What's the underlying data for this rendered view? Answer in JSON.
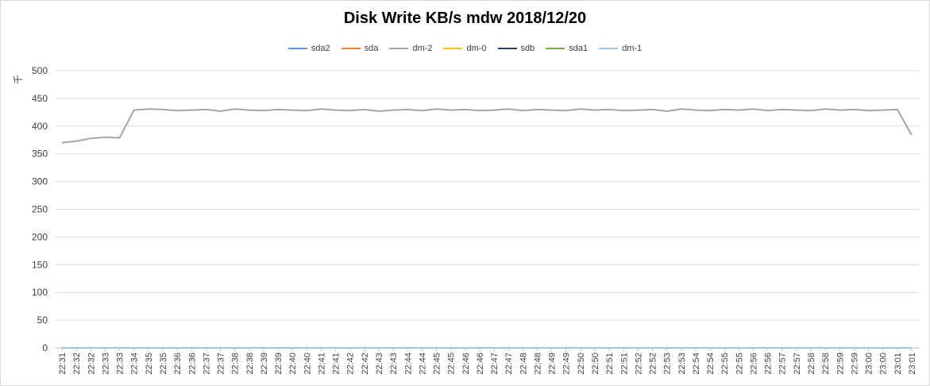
{
  "chart_data": {
    "type": "line",
    "title": "Disk Write KB/s mdw  2018/12/20",
    "xlabel": "",
    "ylabel": "千",
    "ylim": [
      0,
      500
    ],
    "yticks": [
      0,
      50,
      100,
      150,
      200,
      250,
      300,
      350,
      400,
      450,
      500
    ],
    "grid": true,
    "legend_position": "top",
    "x": [
      "22:31",
      "22:32",
      "22:32",
      "22:33",
      "22:33",
      "22:34",
      "22:35",
      "22:35",
      "22:36",
      "22:36",
      "22:37",
      "22:37",
      "22:38",
      "22:38",
      "22:39",
      "22:39",
      "22:40",
      "22:40",
      "22:41",
      "22:41",
      "22:42",
      "22:42",
      "22:43",
      "22:43",
      "22:44",
      "22:44",
      "22:45",
      "22:45",
      "22:46",
      "22:46",
      "22:47",
      "22:47",
      "22:48",
      "22:48",
      "22:49",
      "22:49",
      "22:50",
      "22:50",
      "22:51",
      "22:51",
      "22:52",
      "22:52",
      "22:53",
      "22:53",
      "22:54",
      "22:54",
      "22:55",
      "22:55",
      "22:56",
      "22:56",
      "22:57",
      "22:57",
      "22:58",
      "22:58",
      "22:59",
      "22:59",
      "23:00",
      "23:00",
      "23:01",
      "23:01"
    ],
    "series": [
      {
        "name": "sda2",
        "color": "#5b9bd5",
        "values": [
          0,
          0,
          0,
          0,
          0,
          0,
          0,
          0,
          0,
          0,
          0,
          0,
          0,
          0,
          0,
          0,
          0,
          0,
          0,
          0,
          0,
          0,
          0,
          0,
          0,
          0,
          0,
          0,
          0,
          0,
          0,
          0,
          0,
          0,
          0,
          0,
          0,
          0,
          0,
          0,
          0,
          0,
          0,
          0,
          0,
          0,
          0,
          0,
          0,
          0,
          0,
          0,
          0,
          0,
          0,
          0,
          0,
          0,
          0,
          0
        ]
      },
      {
        "name": "sda",
        "color": "#ed7d31",
        "values": [
          0,
          0,
          0,
          0,
          0,
          0,
          0,
          0,
          0,
          0,
          0,
          0,
          0,
          0,
          0,
          0,
          0,
          0,
          0,
          0,
          0,
          0,
          0,
          0,
          0,
          0,
          0,
          0,
          0,
          0,
          0,
          0,
          0,
          0,
          0,
          0,
          0,
          0,
          0,
          0,
          0,
          0,
          0,
          0,
          0,
          0,
          0,
          0,
          0,
          0,
          0,
          0,
          0,
          0,
          0,
          0,
          0,
          0,
          0,
          0
        ]
      },
      {
        "name": "dm-2",
        "color": "#a5a5a5",
        "values": [
          370,
          373,
          378,
          380,
          379,
          429,
          431,
          430,
          428,
          429,
          430,
          427,
          431,
          429,
          428,
          430,
          429,
          428,
          431,
          429,
          428,
          430,
          427,
          429,
          430,
          428,
          431,
          429,
          430,
          428,
          429,
          431,
          428,
          430,
          429,
          428,
          431,
          429,
          430,
          428,
          429,
          430,
          427,
          431,
          429,
          428,
          430,
          429,
          431,
          428,
          430,
          429,
          428,
          431,
          429,
          430,
          428,
          429,
          430,
          384
        ]
      },
      {
        "name": "dm-0",
        "color": "#ffc000",
        "values": [
          0,
          0,
          0,
          0,
          0,
          0,
          0,
          0,
          0,
          0,
          0,
          0,
          0,
          0,
          0,
          0,
          0,
          0,
          0,
          0,
          0,
          0,
          0,
          0,
          0,
          0,
          0,
          0,
          0,
          0,
          0,
          0,
          0,
          0,
          0,
          0,
          0,
          0,
          0,
          0,
          0,
          0,
          0,
          0,
          0,
          0,
          0,
          0,
          0,
          0,
          0,
          0,
          0,
          0,
          0,
          0,
          0,
          0,
          0,
          0
        ]
      },
      {
        "name": "sdb",
        "color": "#264478",
        "values": [
          0,
          0,
          0,
          0,
          0,
          0,
          0,
          0,
          0,
          0,
          0,
          0,
          0,
          0,
          0,
          0,
          0,
          0,
          0,
          0,
          0,
          0,
          0,
          0,
          0,
          0,
          0,
          0,
          0,
          0,
          0,
          0,
          0,
          0,
          0,
          0,
          0,
          0,
          0,
          0,
          0,
          0,
          0,
          0,
          0,
          0,
          0,
          0,
          0,
          0,
          0,
          0,
          0,
          0,
          0,
          0,
          0,
          0,
          0,
          0
        ]
      },
      {
        "name": "sda1",
        "color": "#70ad47",
        "values": [
          0,
          0,
          0,
          0,
          0,
          0,
          0,
          0,
          0,
          0,
          0,
          0,
          0,
          0,
          0,
          0,
          0,
          0,
          0,
          0,
          0,
          0,
          0,
          0,
          0,
          0,
          0,
          0,
          0,
          0,
          0,
          0,
          0,
          0,
          0,
          0,
          0,
          0,
          0,
          0,
          0,
          0,
          0,
          0,
          0,
          0,
          0,
          0,
          0,
          0,
          0,
          0,
          0,
          0,
          0,
          0,
          0,
          0,
          0,
          0
        ]
      },
      {
        "name": "dm-1",
        "color": "#9dc3e6",
        "values": [
          0,
          0,
          0,
          0,
          0,
          0,
          0,
          0,
          0,
          0,
          0,
          0,
          0,
          0,
          0,
          0,
          0,
          0,
          0,
          0,
          0,
          0,
          0,
          0,
          0,
          0,
          0,
          0,
          0,
          0,
          0,
          0,
          0,
          0,
          0,
          0,
          0,
          0,
          0,
          0,
          0,
          0,
          0,
          0,
          0,
          0,
          0,
          0,
          0,
          0,
          0,
          0,
          0,
          0,
          0,
          0,
          0,
          0,
          0,
          0
        ]
      }
    ]
  }
}
